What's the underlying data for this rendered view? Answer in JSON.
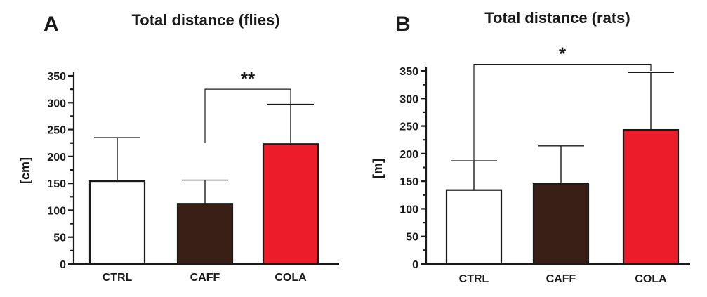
{
  "chart_data": [
    {
      "type": "bar",
      "panel": "A",
      "title": "Total distance (flies)",
      "xlabel": "",
      "ylabel": "[cm]",
      "ylim": [
        0,
        350
      ],
      "yticks": [
        0,
        50,
        100,
        150,
        200,
        250,
        300,
        350
      ],
      "categories": [
        "CTRL",
        "CAFF",
        "COLA"
      ],
      "values": [
        154,
        112,
        223
      ],
      "error_upper": [
        235,
        156,
        297
      ],
      "bar_colors": [
        "#ffffff",
        "#3a1f16",
        "#ec1c2a"
      ],
      "grid": false,
      "significance": [
        {
          "from": "CAFF",
          "to": "COLA",
          "label": "**",
          "level": 325,
          "left_low": 225,
          "right_low": 297
        }
      ]
    },
    {
      "type": "bar",
      "panel": "B",
      "title": "Total distance (rats)",
      "xlabel": "",
      "ylabel": "[m]",
      "ylim": [
        0,
        350
      ],
      "yticks": [
        0,
        50,
        100,
        150,
        200,
        250,
        300,
        350
      ],
      "categories": [
        "CTRL",
        "CAFF",
        "COLA"
      ],
      "values": [
        134,
        145,
        243
      ],
      "error_upper": [
        187,
        214,
        347
      ],
      "bar_colors": [
        "#ffffff",
        "#3a1f16",
        "#ec1c2a"
      ],
      "grid": false,
      "significance": [
        {
          "from": "CTRL",
          "to": "COLA",
          "label": "*",
          "level": 362,
          "left_low": 188,
          "right_low": 350
        }
      ]
    }
  ]
}
